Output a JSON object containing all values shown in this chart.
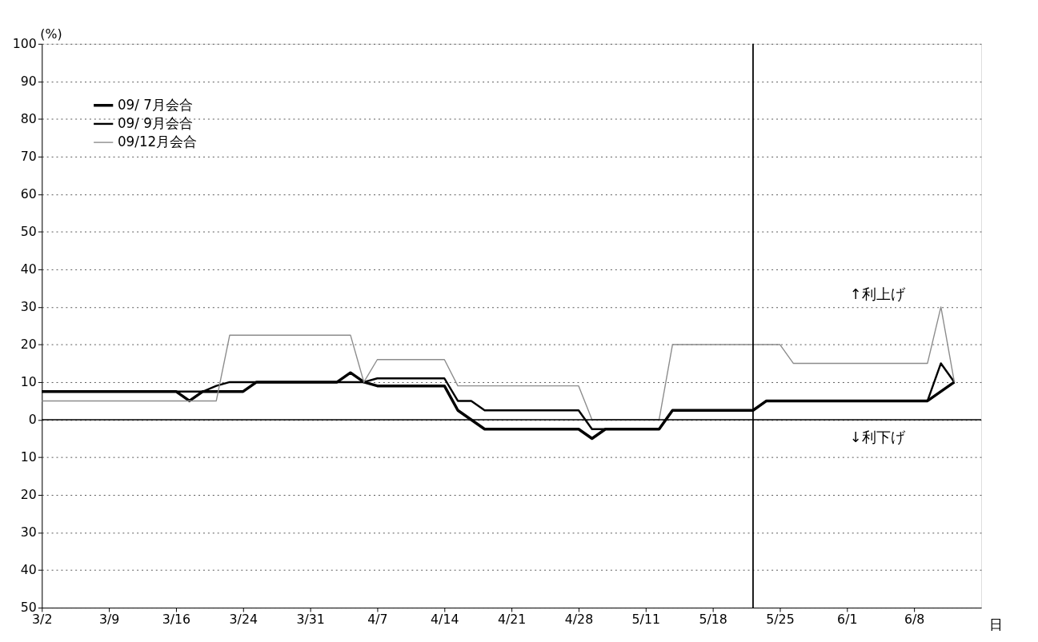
{
  "chart_data": {
    "type": "line",
    "xlabel": "日",
    "ylabel": "(%)",
    "categories": [
      "3/2",
      null,
      null,
      null,
      null,
      "3/9",
      null,
      null,
      null,
      null,
      "3/16",
      null,
      null,
      null,
      null,
      "3/24",
      null,
      null,
      null,
      null,
      "3/31",
      null,
      null,
      null,
      null,
      "4/7",
      null,
      null,
      null,
      null,
      "4/14",
      null,
      null,
      null,
      null,
      "4/21",
      null,
      null,
      null,
      null,
      "4/28",
      null,
      null,
      null,
      null,
      "5/11",
      null,
      null,
      null,
      null,
      "5/18",
      null,
      null,
      null,
      null,
      "5/25",
      null,
      null,
      null,
      null,
      "6/1",
      null,
      null,
      null,
      null,
      "6/8",
      null,
      null,
      null,
      null,
      null
    ],
    "series": [
      {
        "name": "09/ 7月会合",
        "color": "#000000",
        "values": [
          7.5,
          7.5,
          7.5,
          7.5,
          7.5,
          7.5,
          7.5,
          7.5,
          7.5,
          7.5,
          7.5,
          5,
          7.5,
          7.5,
          7.5,
          7.5,
          10,
          10,
          10,
          10,
          10,
          10,
          10,
          12.5,
          10,
          9,
          9,
          9,
          9,
          9,
          9,
          2.5,
          0,
          -2.5,
          -2.5,
          -2.5,
          -2.5,
          -2.5,
          -2.5,
          -2.5,
          -2.5,
          -5,
          -2.5,
          -2.5,
          -2.5,
          -2.5,
          -2.5,
          2.5,
          2.5,
          2.5,
          2.5,
          2.5,
          2.5,
          2.5,
          5,
          5,
          5,
          5,
          5,
          5,
          5,
          5,
          5,
          5,
          5,
          5,
          5,
          7.5,
          10,
          null,
          null
        ]
      },
      {
        "name": "09/ 9月会合",
        "color": "#000000",
        "values": [
          7.5,
          7.5,
          7.5,
          7.5,
          7.5,
          7.5,
          7.5,
          7.5,
          7.5,
          7.5,
          7.5,
          7.5,
          7.5,
          9,
          10,
          10,
          10,
          10,
          10,
          10,
          10,
          10,
          10,
          10,
          10,
          11,
          11,
          11,
          11,
          11,
          11,
          5,
          5,
          2.5,
          2.5,
          2.5,
          2.5,
          2.5,
          2.5,
          2.5,
          2.5,
          -2.5,
          -2.5,
          -2.5,
          -2.5,
          -2.5,
          -2.5,
          2.5,
          2.5,
          2.5,
          2.5,
          2.5,
          2.5,
          2.5,
          5,
          5,
          5,
          5,
          5,
          5,
          5,
          5,
          5,
          5,
          5,
          5,
          5,
          15,
          10,
          null,
          null
        ]
      },
      {
        "name": "09/12月会合",
        "color": "#8c8c8c",
        "values": [
          5,
          5,
          5,
          5,
          5,
          5,
          5,
          5,
          5,
          5,
          5,
          5,
          5,
          5,
          22.5,
          22.5,
          22.5,
          22.5,
          22.5,
          22.5,
          22.5,
          22.5,
          22.5,
          22.5,
          10,
          16,
          16,
          16,
          16,
          16,
          16,
          9,
          9,
          9,
          9,
          9,
          9,
          9,
          9,
          9,
          9,
          0,
          0,
          0,
          0,
          0,
          0,
          20,
          20,
          20,
          20,
          20,
          20,
          20,
          20,
          20,
          15,
          15,
          15,
          15,
          15,
          15,
          15,
          15,
          15,
          15,
          15,
          30,
          10,
          null,
          null
        ]
      }
    ],
    "ylim": [
      -50,
      100
    ],
    "yticks": [
      100,
      90,
      80,
      70,
      60,
      50,
      40,
      30,
      20,
      10,
      0,
      {
        "value": -10,
        "label": "10"
      },
      {
        "value": -20,
        "label": "20"
      },
      {
        "value": -30,
        "label": "30"
      },
      {
        "value": -40,
        "label": "40"
      },
      {
        "value": -50,
        "label": "50"
      }
    ],
    "ref_lines": [
      {
        "axis": "y",
        "value": 0
      }
    ],
    "annotations": [
      "↑利上げ",
      "↓利下げ"
    ],
    "grid": "y",
    "legend": "top left",
    "line_style": "solid",
    "marker": "none"
  }
}
